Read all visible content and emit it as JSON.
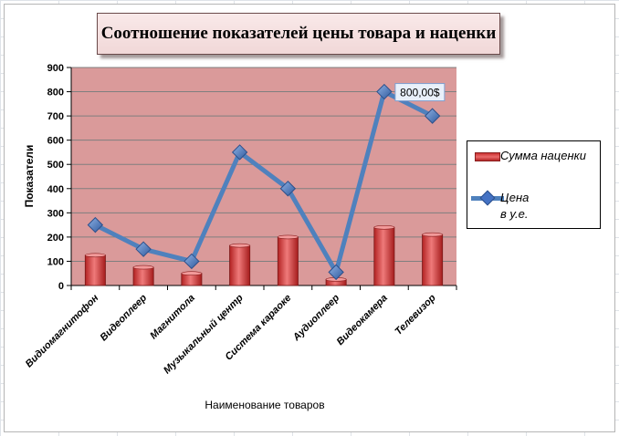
{
  "chart_data": {
    "type": "bar",
    "title": "Соотношение показателей цены  товара и наценки",
    "xlabel": "Наименование  товаров",
    "ylabel": "Показатели",
    "ylim": [
      0,
      900
    ],
    "yticks": [
      0,
      100,
      200,
      300,
      400,
      500,
      600,
      700,
      800,
      900
    ],
    "categories": [
      "Видиомагнитофон",
      "Видеоплеер",
      "Магнитола",
      "Музыкальный  центр",
      "Система караоке",
      "Аудиоплеер",
      "Видеокамера",
      "Телевизор"
    ],
    "series": [
      {
        "name": "Сумма наценки",
        "type": "bar",
        "values": [
          125,
          75,
          50,
          165,
          200,
          25,
          240,
          210
        ],
        "color": "#d33a3a"
      },
      {
        "name": "Цена в у.е.",
        "name_line1": "Цена",
        "name_line2": "в у.е.",
        "type": "line",
        "values": [
          250,
          150,
          100,
          550,
          400,
          55,
          800,
          700
        ],
        "color": "#4f81bd"
      }
    ],
    "annotation": {
      "text": "800,00$",
      "category_index": 6
    },
    "legend_position": "right",
    "grid": true,
    "plot_background": "#da9a9a"
  }
}
